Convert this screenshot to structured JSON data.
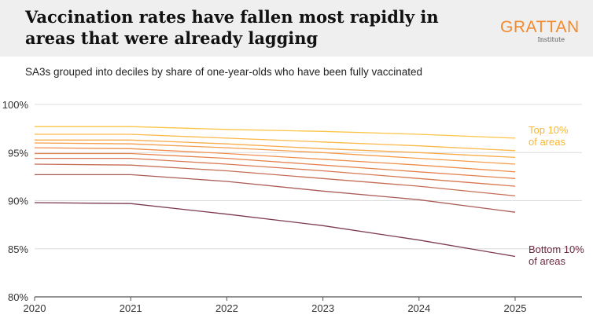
{
  "header": {
    "title": "Vaccination rates have fallen most rapidly in areas that were already lagging",
    "logo_main": "GRATTAN",
    "logo_sub": "Institute",
    "logo_color": "#f28a2e"
  },
  "chart_data": {
    "type": "line",
    "title": "Vaccination rates have fallen most rapidly in areas that were already lagging",
    "subtitle": "SA3s grouped into deciles by share of one-year-olds who have been fully vaccinated",
    "x": [
      2020,
      2021,
      2022,
      2023,
      2024,
      2025
    ],
    "xlim": [
      2020,
      2025.7
    ],
    "ylim": [
      80,
      100
    ],
    "y_ticks": [
      80,
      85,
      90,
      95,
      100
    ],
    "y_tick_labels": [
      "80%",
      "85%",
      "90%",
      "95%",
      "100%"
    ],
    "x_tick_labels": [
      "2020",
      "2021",
      "2022",
      "2023",
      "2024",
      "2025"
    ],
    "grid": true,
    "series": [
      {
        "values": [
          97.7,
          97.7,
          97.4,
          97.2,
          96.9,
          96.5
        ],
        "color": "#fcc447"
      },
      {
        "values": [
          96.9,
          96.9,
          96.5,
          96.1,
          95.7,
          95.2
        ],
        "color": "#fbb848"
      },
      {
        "values": [
          96.3,
          96.3,
          95.9,
          95.4,
          95.0,
          94.5
        ],
        "color": "#f9ab4a"
      },
      {
        "values": [
          96.0,
          95.9,
          95.5,
          95.0,
          94.4,
          93.8
        ],
        "color": "#f59d4c"
      },
      {
        "values": [
          95.5,
          95.4,
          94.9,
          94.3,
          93.7,
          93.0
        ],
        "color": "#ef8f4e"
      },
      {
        "values": [
          94.9,
          94.9,
          94.4,
          93.7,
          93.0,
          92.3
        ],
        "color": "#e5834f"
      },
      {
        "values": [
          94.4,
          94.4,
          93.8,
          93.1,
          92.3,
          91.5
        ],
        "color": "#d87751"
      },
      {
        "values": [
          93.8,
          93.7,
          93.1,
          92.3,
          91.5,
          90.5
        ],
        "color": "#c66d55"
      },
      {
        "values": [
          92.7,
          92.7,
          92.0,
          91.0,
          90.1,
          88.8
        ],
        "color": "#aa5b56"
      },
      {
        "values": [
          89.8,
          89.7,
          88.6,
          87.4,
          85.9,
          84.2
        ],
        "color": "#7c3a4e"
      }
    ],
    "annotations": [
      {
        "text": [
          "Top 10%",
          "of areas"
        ],
        "color": "#f7b733"
      },
      {
        "text": [
          "Bottom 10%",
          "of areas"
        ],
        "color": "#6e2a42"
      }
    ]
  }
}
